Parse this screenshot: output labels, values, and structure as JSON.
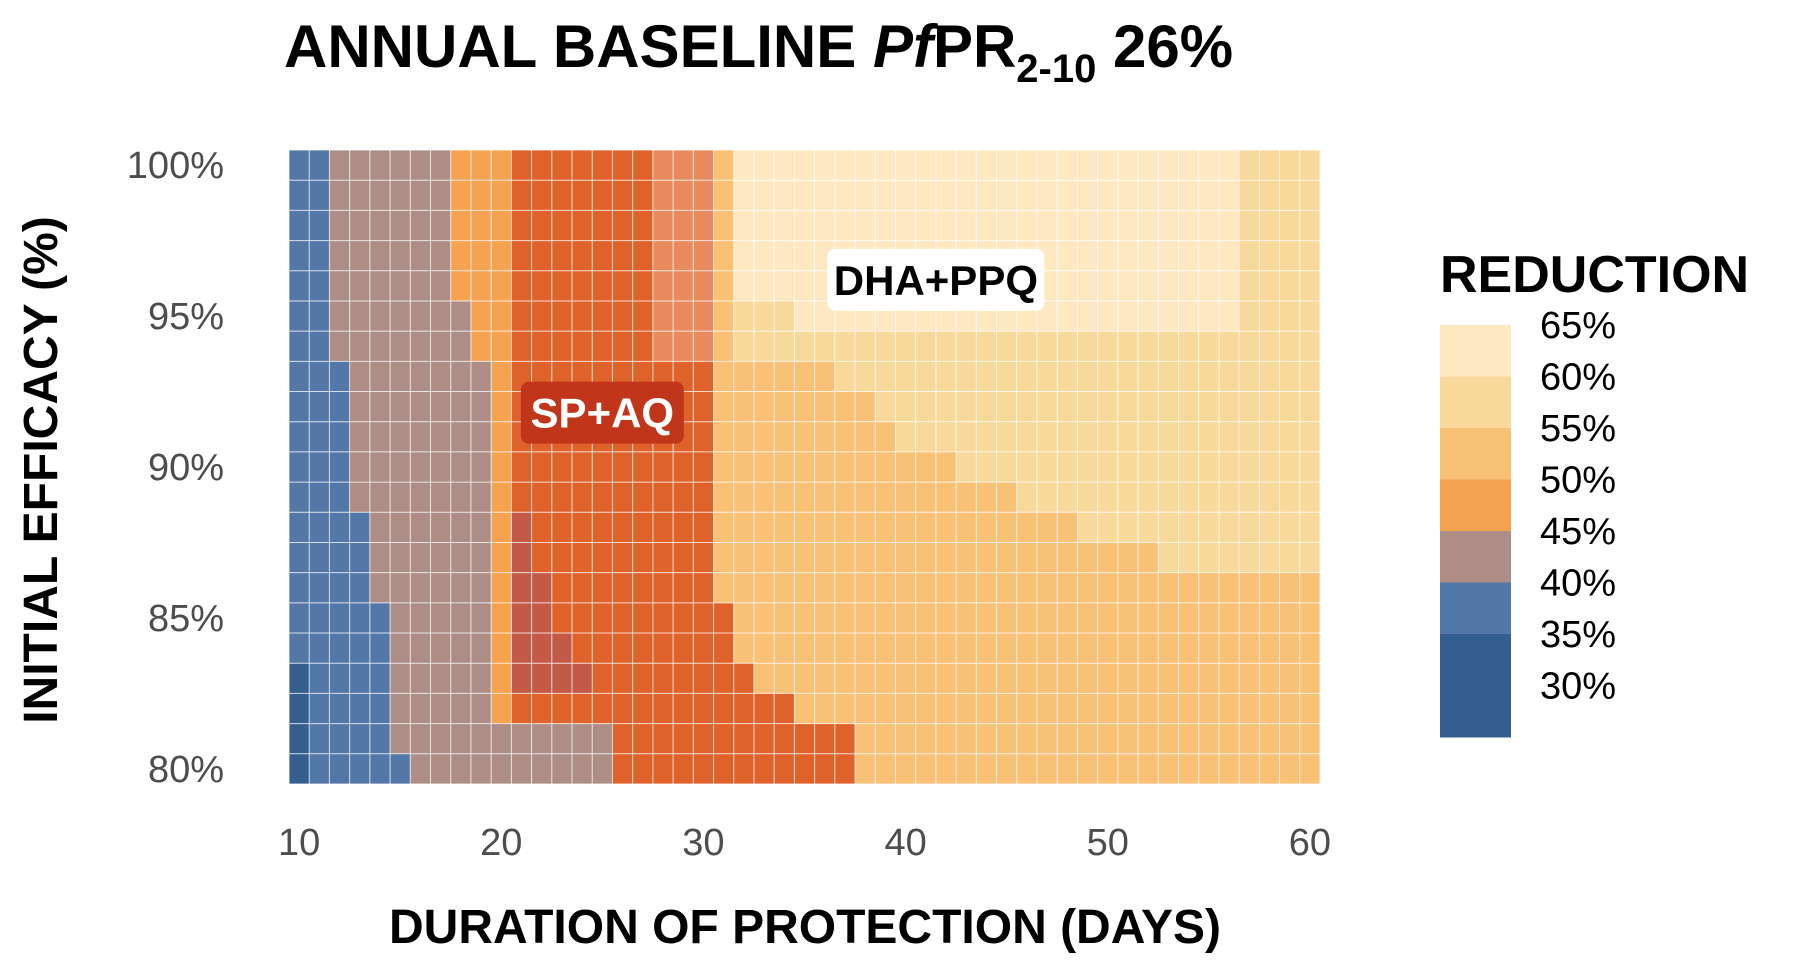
{
  "chart_data": {
    "type": "heatmap",
    "title": {
      "prefix": "ANNUAL BASELINE ",
      "italic": "Pf",
      "main": "PR",
      "subscript": "2-10",
      "suffix": " 26%"
    },
    "xlabel": "DURATION OF PROTECTION (DAYS)",
    "ylabel": "INITIAL EFFICACY (%)",
    "xlim": [
      10,
      61
    ],
    "ylim": [
      80,
      100
    ],
    "x_ticks": [
      {
        "value": 10,
        "label": "10"
      },
      {
        "value": 20,
        "label": "20"
      },
      {
        "value": 30,
        "label": "30"
      },
      {
        "value": 40,
        "label": "40"
      },
      {
        "value": 50,
        "label": "50"
      },
      {
        "value": 60,
        "label": "60"
      }
    ],
    "y_ticks": [
      {
        "value": 100,
        "label": "100%"
      },
      {
        "value": 95,
        "label": "95%"
      },
      {
        "value": 90,
        "label": "90%"
      },
      {
        "value": 85,
        "label": "85%"
      },
      {
        "value": 80,
        "label": "80%"
      }
    ],
    "x_values": [
      10,
      11,
      12,
      13,
      14,
      15,
      16,
      17,
      18,
      19,
      20,
      21,
      22,
      23,
      24,
      25,
      26,
      27,
      28,
      29,
      30,
      31,
      32,
      33,
      34,
      35,
      36,
      37,
      38,
      39,
      40,
      41,
      42,
      43,
      44,
      45,
      46,
      47,
      48,
      49,
      50,
      51,
      52,
      53,
      54,
      55,
      56,
      57,
      58,
      59,
      60
    ],
    "y_values": [
      100,
      99,
      98,
      97,
      96,
      95,
      94,
      93,
      92,
      91,
      90,
      89,
      88,
      87,
      86,
      85,
      84,
      83,
      82,
      81,
      80
    ],
    "legend": {
      "title": "REDUCTION",
      "position": "right",
      "bins": [
        {
          "label": "65%",
          "color": "#fde8c2"
        },
        {
          "label": "60%",
          "color": "#f9d89b"
        },
        {
          "label": "55%",
          "color": "#f8c176"
        },
        {
          "label": "50%",
          "color": "#f5a251"
        },
        {
          "label": "45%",
          "color": "#ae8d86"
        },
        {
          "label": "40%",
          "color": "#5378a8"
        },
        {
          "label": "35%",
          "color": "#345f8f"
        },
        {
          "label": "30%",
          "color": "#345f8f"
        }
      ]
    },
    "boundaries": {
      "b40": [
        11.5,
        11.5,
        11.5,
        11.5,
        11.5,
        11.5,
        11.5,
        12.5,
        12.5,
        12.5,
        12.5,
        12.5,
        13.5,
        13.5,
        13.5,
        14.5,
        14.5,
        14.5,
        14.5,
        14.5,
        15.5
      ],
      "b45": [
        17.5,
        17.5,
        17.5,
        17.5,
        17.5,
        18.5,
        18.5,
        19.5,
        19.5,
        19.5,
        19.5,
        19.5,
        19.5,
        19.5,
        19.5,
        19.5,
        19.5,
        19.5,
        19.5,
        25.5,
        25.5
      ],
      "b50": [
        20.5,
        20.5,
        20.5,
        20.5,
        20.5,
        20.5,
        20.5,
        20.5,
        20.5,
        20.5,
        20.5,
        20.5,
        20.5,
        20.5,
        20.5,
        20.5,
        20.5,
        20.5,
        20.5,
        25.5,
        25.5
      ],
      "b55": [
        30.5,
        30.5,
        30.5,
        30.5,
        30.5,
        30.5,
        30.5,
        30.5,
        30.5,
        30.5,
        30.5,
        30.5,
        30.5,
        30.5,
        30.5,
        31.5,
        31.5,
        32.5,
        34.5,
        37.5,
        37.5
      ],
      "b60": [
        31.5,
        31.5,
        31.5,
        31.5,
        31.5,
        31.5,
        31.5,
        36.5,
        38.5,
        39.5,
        42.5,
        45.5,
        48.5,
        52.5,
        61.5,
        61.5,
        61.5,
        61.5,
        61.5,
        61.5,
        61.5
      ],
      "b65": [
        31.5,
        31.5,
        31.5,
        31.5,
        31.5,
        34.5,
        61.5,
        61.5,
        61.5,
        61.5,
        61.5,
        61.5,
        61.5,
        61.5,
        61.5,
        61.5,
        61.5,
        61.5,
        61.5,
        61.5,
        61.5
      ],
      "b65_end": [
        56.5,
        56.5,
        56.5,
        56.5,
        56.5,
        56.5,
        null,
        null,
        null,
        null,
        null,
        null,
        null,
        null,
        null,
        null,
        null,
        null,
        null,
        null,
        null
      ],
      "b60_end": [
        null,
        null,
        null,
        null,
        null,
        null,
        null,
        null,
        null,
        null,
        null,
        null,
        null,
        null,
        null,
        null,
        null,
        null,
        null,
        null,
        null
      ],
      "b55_end": [
        null,
        null,
        null,
        null,
        null,
        null,
        null,
        null,
        null,
        null,
        null,
        null,
        60.5,
        60.5,
        60.5,
        null,
        null,
        null,
        null,
        null,
        null
      ]
    },
    "band_colors": {
      "v35": "#345f8f",
      "v40": "#5378a8",
      "v45": "#ae8d86",
      "v50": "#f5a251",
      "v55": "#f8c176",
      "v60": "#f9d89b",
      "v65": "#fde8c2",
      "sp_aq": "#e0622b",
      "sp_aq_light": "#e88a5e",
      "sp_aq_dark": "#c25a47"
    },
    "annotations": [
      {
        "label": "SP+AQ",
        "x": 25,
        "y": 91.8,
        "fill": "#c1351a",
        "text_color": "#ffffff"
      },
      {
        "label": "DHA+PPQ",
        "x": 41.5,
        "y": 96.2,
        "fill": "#ffffff",
        "text_color": "#000000"
      }
    ]
  }
}
